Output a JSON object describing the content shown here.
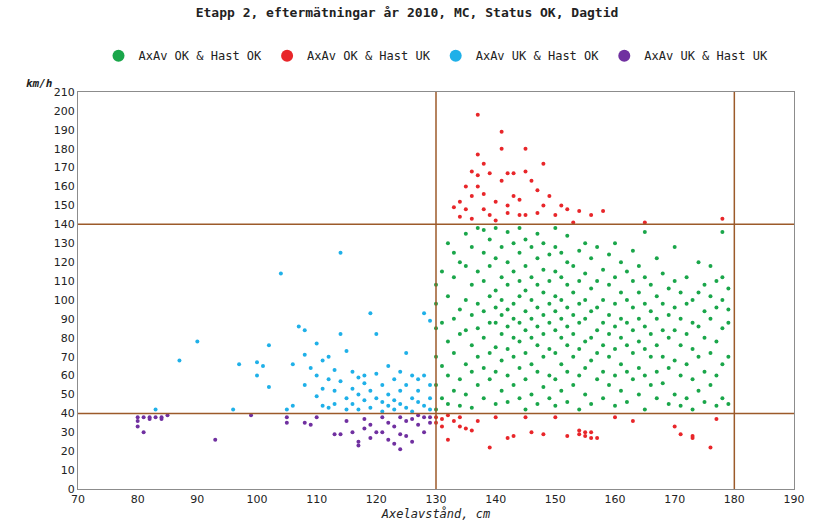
{
  "chart_data": {
    "type": "scatter",
    "title": "Etapp 2, eftermätningar år 2010, MC, Status OK, Dagtid",
    "xlabel": "Axelavstånd, cm",
    "ylabel": "km/h",
    "xlim": [
      70,
      190
    ],
    "xticks": [
      70,
      80,
      90,
      100,
      110,
      120,
      130,
      140,
      150,
      160,
      170,
      180,
      190
    ],
    "ylim": [
      0,
      210
    ],
    "yticks": [
      0,
      10,
      20,
      30,
      40,
      50,
      60,
      70,
      80,
      90,
      100,
      110,
      120,
      130,
      140,
      150,
      160,
      170,
      180,
      190,
      200,
      210
    ],
    "x_lines": [
      130,
      180
    ],
    "y_lines": [
      40,
      140
    ],
    "grid": false,
    "legend": "top",
    "marker": "circle",
    "series": [
      {
        "name": "AxAv OK & Hast OK",
        "color": "#1aa64a",
        "x": [
          130,
          130,
          130,
          130,
          130,
          130,
          131,
          131,
          131,
          131,
          132,
          132,
          132,
          132,
          132,
          133,
          133,
          133,
          133,
          133,
          134,
          134,
          134,
          134,
          134,
          135,
          135,
          135,
          135,
          135,
          135,
          136,
          136,
          136,
          136,
          136,
          136,
          137,
          137,
          137,
          137,
          137,
          137,
          138,
          138,
          138,
          138,
          138,
          138,
          138,
          139,
          139,
          139,
          139,
          139,
          139,
          140,
          140,
          140,
          140,
          140,
          140,
          140,
          140,
          141,
          141,
          141,
          141,
          141,
          141,
          141,
          142,
          142,
          142,
          142,
          142,
          142,
          142,
          142,
          143,
          143,
          143,
          143,
          143,
          143,
          143,
          144,
          144,
          144,
          144,
          144,
          144,
          144,
          144,
          145,
          145,
          145,
          145,
          145,
          145,
          145,
          145,
          146,
          146,
          146,
          146,
          146,
          146,
          146,
          147,
          147,
          147,
          147,
          147,
          147,
          147,
          147,
          148,
          148,
          148,
          148,
          148,
          148,
          148,
          149,
          149,
          149,
          149,
          149,
          149,
          149,
          150,
          150,
          150,
          150,
          150,
          150,
          150,
          150,
          150,
          151,
          151,
          151,
          151,
          151,
          151,
          151,
          152,
          152,
          152,
          152,
          152,
          152,
          152,
          152,
          153,
          153,
          153,
          153,
          153,
          153,
          154,
          154,
          154,
          154,
          154,
          154,
          154,
          155,
          155,
          155,
          155,
          155,
          155,
          155,
          156,
          156,
          156,
          156,
          156,
          156,
          157,
          157,
          157,
          157,
          157,
          157,
          158,
          158,
          158,
          158,
          158,
          158,
          159,
          159,
          159,
          159,
          159,
          159,
          160,
          160,
          160,
          160,
          160,
          160,
          160,
          161,
          161,
          161,
          161,
          161,
          161,
          162,
          162,
          162,
          162,
          162,
          162,
          163,
          163,
          163,
          163,
          163,
          163,
          164,
          164,
          164,
          164,
          164,
          164,
          165,
          165,
          165,
          165,
          165,
          165,
          165,
          166,
          166,
          166,
          166,
          166,
          167,
          167,
          167,
          167,
          167,
          167,
          168,
          168,
          168,
          168,
          168,
          169,
          169,
          169,
          169,
          169,
          170,
          170,
          170,
          170,
          170,
          170,
          171,
          171,
          171,
          171,
          171,
          172,
          172,
          172,
          172,
          172,
          173,
          173,
          173,
          173,
          173,
          174,
          174,
          174,
          174,
          174,
          175,
          175,
          175,
          175,
          175,
          176,
          176,
          176,
          176,
          176,
          177,
          177,
          177,
          177,
          177,
          178,
          178,
          178,
          178,
          178,
          178,
          179,
          179,
          179,
          179,
          179
        ],
        "values": [
          42,
          55,
          70,
          85,
          98,
          108,
          48,
          65,
          88,
          115,
          45,
          60,
          78,
          102,
          130,
          52,
          72,
          90,
          125,
          112,
          44,
          58,
          82,
          95,
          120,
          50,
          66,
          84,
          100,
          118,
          135,
          43,
          62,
          76,
          92,
          108,
          128,
          55,
          70,
          85,
          98,
          115,
          138,
          48,
          64,
          80,
          94,
          110,
          125,
          137,
          58,
          72,
          88,
          102,
          118,
          132,
          45,
          62,
          75,
          88,
          96,
          105,
          122,
          138,
          52,
          68,
          82,
          92,
          100,
          112,
          128,
          46,
          60,
          74,
          86,
          95,
          108,
          120,
          136,
          55,
          70,
          80,
          90,
          98,
          115,
          130,
          48,
          64,
          78,
          88,
          102,
          110,
          125,
          138,
          42,
          58,
          72,
          84,
          94,
          105,
          118,
          132,
          50,
          66,
          80,
          90,
          100,
          112,
          128,
          45,
          62,
          76,
          86,
          96,
          108,
          122,
          135,
          54,
          70,
          82,
          92,
          104,
          116,
          130,
          48,
          60,
          74,
          88,
          98,
          110,
          124,
          44,
          58,
          72,
          84,
          94,
          102,
          115,
          128,
          138,
          52,
          66,
          80,
          90,
          100,
          112,
          125,
          46,
          62,
          76,
          86,
          96,
          108,
          120,
          134,
          55,
          70,
          82,
          92,
          104,
          118,
          42,
          60,
          74,
          88,
          98,
          110,
          126,
          50,
          64,
          78,
          90,
          100,
          114,
          130,
          45,
          68,
          80,
          94,
          106,
          122,
          58,
          72,
          84,
          96,
          110,
          128,
          48,
          62,
          76,
          88,
          100,
          116,
          55,
          70,
          82,
          92,
          108,
          124,
          44,
          60,
          74,
          86,
          98,
          112,
          130,
          52,
          66,
          80,
          90,
          104,
          120,
          46,
          62,
          76,
          88,
          100,
          115,
          58,
          72,
          84,
          96,
          110,
          126,
          50,
          64,
          78,
          90,
          104,
          118,
          42,
          60,
          74,
          86,
          98,
          112,
          136,
          55,
          70,
          82,
          94,
          108,
          48,
          62,
          76,
          90,
          102,
          122,
          56,
          70,
          84,
          98,
          114,
          45,
          64,
          80,
          92,
          106,
          50,
          68,
          84,
          96,
          110,
          128,
          44,
          60,
          76,
          90,
          104,
          48,
          66,
          82,
          98,
          112,
          42,
          58,
          74,
          88,
          100,
          52,
          70,
          86,
          104,
          120,
          46,
          62,
          80,
          94,
          108,
          55,
          72,
          90,
          102,
          118,
          44,
          60,
          78,
          96,
          110,
          48,
          66,
          85,
          100,
          112,
          136,
          45,
          70,
          88,
          95,
          106
        ]
      },
      {
        "name": "AxAv OK & Hast UK",
        "color": "#e8262a",
        "x": [
          133,
          134,
          134,
          135,
          135,
          136,
          136,
          136,
          137,
          137,
          137,
          137,
          138,
          138,
          138,
          139,
          139,
          140,
          140,
          141,
          141,
          141,
          142,
          142,
          142,
          143,
          143,
          144,
          144,
          145,
          145,
          145,
          146,
          147,
          147,
          148,
          148,
          149,
          150,
          151,
          152,
          153,
          154,
          156,
          158,
          165,
          178,
          130,
          130,
          131,
          131,
          132,
          132,
          133,
          134,
          134,
          135,
          136,
          137,
          139,
          140,
          142,
          143,
          145,
          146,
          148,
          150,
          152,
          154,
          154,
          155,
          155,
          156,
          156,
          157,
          160,
          163,
          170,
          171,
          173,
          173,
          176,
          177
        ],
        "values": [
          149,
          152,
          144,
          160,
          148,
          168,
          155,
          143,
          198,
          177,
          166,
          160,
          172,
          156,
          148,
          167,
          145,
          142,
          152,
          189,
          180,
          163,
          167,
          150,
          146,
          167,
          155,
          153,
          145,
          180,
          168,
          145,
          163,
          158,
          146,
          172,
          150,
          155,
          145,
          150,
          148,
          141,
          147,
          145,
          147,
          141,
          143,
          38,
          35,
          37,
          33,
          39,
          26,
          36,
          38,
          33,
          32,
          31,
          36,
          22,
          38,
          27,
          28,
          38,
          30,
          29,
          38,
          28,
          31,
          29,
          30,
          28,
          27,
          30,
          27,
          38,
          36,
          33,
          29,
          27,
          28,
          22,
          37
        ]
      },
      {
        "name": "AxAv UK & Hast OK",
        "color": "#1fb0e8",
        "x": [
          83,
          87,
          90,
          96,
          97,
          100,
          100,
          101,
          102,
          102,
          104,
          105,
          106,
          106,
          107,
          108,
          108,
          108,
          109,
          110,
          110,
          110,
          111,
          111,
          111,
          112,
          112,
          112,
          113,
          113,
          113,
          114,
          114,
          114,
          115,
          115,
          115,
          116,
          116,
          116,
          117,
          117,
          117,
          118,
          118,
          118,
          119,
          119,
          119,
          120,
          120,
          120,
          121,
          121,
          121,
          122,
          122,
          122,
          123,
          123,
          123,
          124,
          124,
          124,
          125,
          125,
          125,
          126,
          126,
          126,
          127,
          127,
          127,
          128,
          128,
          128,
          129,
          129,
          129,
          129
        ],
        "values": [
          42,
          68,
          78,
          42,
          66,
          67,
          60,
          65,
          54,
          76,
          114,
          42,
          66,
          44,
          86,
          84,
          55,
          71,
          64,
          77,
          49,
          60,
          44,
          68,
          53,
          43,
          70,
          58,
          45,
          63,
          52,
          125,
          82,
          57,
          73,
          48,
          42,
          62,
          45,
          53,
          59,
          42,
          50,
          60,
          47,
          56,
          93,
          43,
          52,
          82,
          61,
          48,
          46,
          55,
          41,
          65,
          50,
          44,
          58,
          47,
          42,
          62,
          52,
          45,
          72,
          55,
          43,
          60,
          48,
          41,
          58,
          46,
          52,
          93,
          60,
          44,
          89,
          55,
          48,
          42
        ]
      },
      {
        "name": "AxAv UK & Hast UK",
        "color": "#7030a0",
        "x": [
          80,
          80,
          80,
          81,
          81,
          82,
          82,
          83,
          84,
          84,
          85,
          93,
          99,
          105,
          105,
          108,
          109,
          110,
          113,
          114,
          115,
          116,
          117,
          117,
          118,
          118,
          119,
          119,
          120,
          121,
          121,
          122,
          122,
          123,
          123,
          124,
          124,
          124,
          125,
          125,
          126,
          126,
          127,
          127,
          128,
          128,
          129,
          129
        ],
        "values": [
          38,
          36,
          33,
          38,
          30,
          37,
          38,
          38,
          37,
          38,
          39,
          26,
          39,
          38,
          35,
          35,
          34,
          38,
          29,
          29,
          36,
          30,
          25,
          23,
          37,
          32,
          34,
          27,
          30,
          38,
          30,
          26,
          35,
          33,
          24,
          38,
          21,
          29,
          28,
          36,
          37,
          25,
          34,
          39,
          38,
          30,
          35,
          38
        ]
      }
    ]
  }
}
